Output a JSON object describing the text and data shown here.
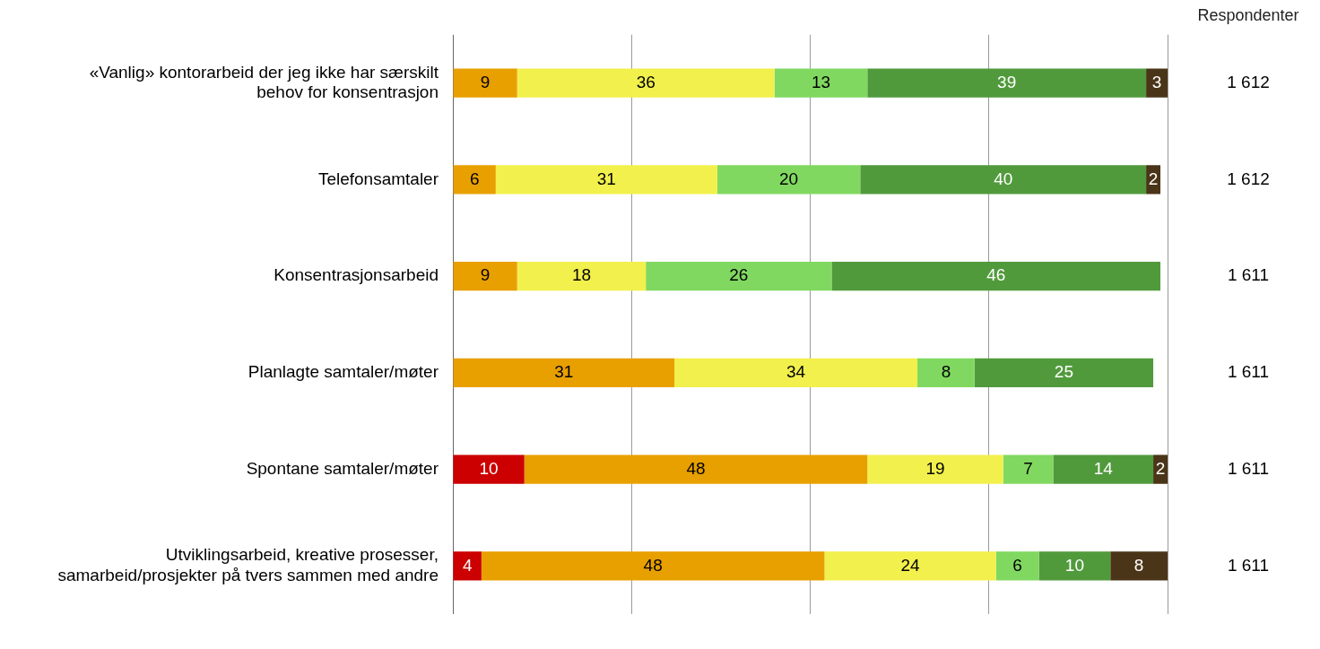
{
  "chart_data": {
    "type": "bar",
    "orientation": "horizontal",
    "stacked": true,
    "categories": [
      "«Vanlig» kontorarbeid der jeg ikke har særskilt behov for konsentrasjon",
      "Telefonsamtaler",
      "Konsentrasjonsarbeid",
      "Planlagte samtaler/møter",
      "Spontane samtaler/møter",
      "Utviklingsarbeid, kreative prosesser, samarbeid/prosjekter på tvers sammen med andre"
    ],
    "series": [
      {
        "color": "#cc0000",
        "values": [
          null,
          null,
          null,
          null,
          10,
          4
        ],
        "value_labels": [
          null,
          null,
          null,
          null,
          "10",
          "4"
        ]
      },
      {
        "color": "#e8a000",
        "values": [
          9,
          6,
          9,
          31,
          48,
          48
        ],
        "value_labels": [
          "9",
          "6",
          "9",
          "31",
          "48",
          "48"
        ]
      },
      {
        "color": "#f2f04c",
        "values": [
          36,
          31,
          18,
          34,
          19,
          24
        ],
        "value_labels": [
          "36",
          "31",
          "18",
          "34",
          "19",
          "24"
        ]
      },
      {
        "color": "#80d860",
        "values": [
          13,
          20,
          26,
          8,
          7,
          6
        ],
        "value_labels": [
          "13",
          "20",
          "26",
          "8",
          "7",
          "6"
        ]
      },
      {
        "color": "#519a3c",
        "values": [
          39,
          40,
          46,
          25,
          14,
          10
        ],
        "value_labels": [
          "39",
          "40",
          "46",
          "25",
          "14",
          "10"
        ]
      },
      {
        "color": "#4a3518",
        "values": [
          3,
          2,
          null,
          null,
          2,
          8
        ],
        "value_labels": [
          "3",
          "2",
          null,
          null,
          "2",
          "8"
        ]
      }
    ],
    "xlim": [
      0,
      100
    ],
    "xticks": [
      {
        "value": 0,
        "label": null
      },
      {
        "value": 25,
        "label": null
      },
      {
        "value": 50,
        "label": null
      },
      {
        "value": 75,
        "label": null
      },
      {
        "value": 100,
        "label": null
      }
    ],
    "grid": "x",
    "tick_labels": "y",
    "annotations": [
      "Respondenter",
      "1 612",
      "1 612",
      "1 611",
      "1 611",
      "1 611",
      "1 611"
    ]
  }
}
